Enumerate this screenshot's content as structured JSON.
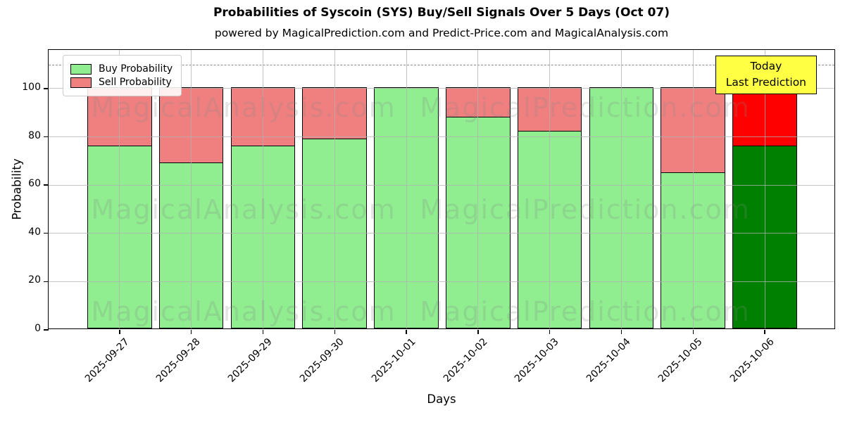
{
  "title": "Probabilities of Syscoin (SYS) Buy/Sell Signals Over 5 Days (Oct 07)",
  "subtitle": "powered by MagicalPrediction.com and Predict-Price.com and MagicalAnalysis.com",
  "annotation": {
    "line1": "Today",
    "line2": "Last Prediction",
    "bg_color": "#ffff44"
  },
  "watermarks": [
    "MagicalAnalysis.com",
    "MagicalPrediction.com"
  ],
  "colors": {
    "buy": "#90ee90",
    "sell": "#f08080",
    "buy_last": "#008000",
    "sell_last": "#ff0000",
    "grid": "#b0b0b0"
  },
  "chart_data": {
    "type": "bar",
    "stacked": true,
    "title": "Probabilities of Syscoin (SYS) Buy/Sell Signals Over 5 Days (Oct 07)",
    "categories": [
      "2025-09-27",
      "2025-09-28",
      "2025-09-29",
      "2025-09-30",
      "2025-10-01",
      "2025-10-02",
      "2025-10-03",
      "2025-10-04",
      "2025-10-05",
      "2025-10-06"
    ],
    "series": [
      {
        "name": "Buy Probability",
        "color": "#90ee90",
        "last_bar_color": "#008000",
        "values": [
          76,
          69,
          76,
          79,
          100,
          88,
          82,
          100,
          65,
          76
        ]
      },
      {
        "name": "Sell Probability",
        "color": "#f08080",
        "last_bar_color": "#ff0000",
        "values": [
          24,
          31,
          24,
          21,
          0,
          12,
          18,
          0,
          35,
          24
        ]
      }
    ],
    "xlabel": "Days",
    "ylabel": "Probability",
    "yticks": [
      0,
      20,
      40,
      60,
      80,
      100
    ],
    "ylim": [
      0,
      116
    ],
    "dashed_line_y": 110,
    "grid": true,
    "legend_position": "upper left"
  }
}
